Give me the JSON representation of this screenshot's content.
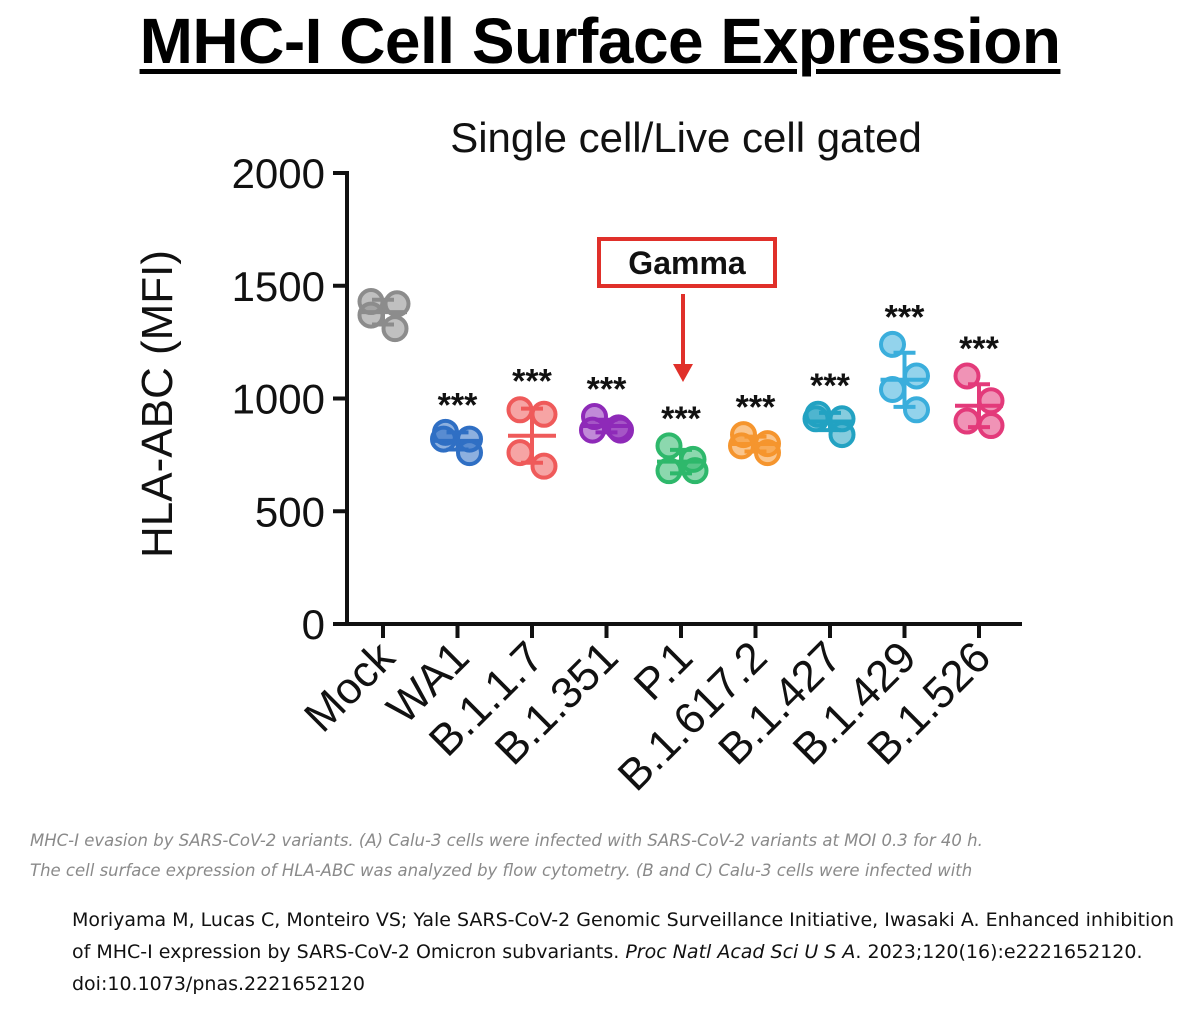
{
  "page": {
    "title": "MHC-I Cell Surface Expression",
    "caption_lines": [
      "MHC-I evasion by SARS-CoV-2 variants. (A) Calu-3 cells were infected with SARS-CoV-2 variants at MOI 0.3 for 40 h.",
      "The cell surface expression of HLA-ABC was analyzed by flow cytometry. (B and C) Calu-3 cells were infected with"
    ],
    "citation": {
      "part1": "Moriyama M, Lucas C, Monteiro VS; Yale SARS-CoV-2 Genomic Surveillance Initiative, Iwasaki A. Enhanced inhibition of MHC-I expression by SARS-CoV-2 Omicron subvariants. ",
      "journal": "Proc Natl Acad Sci U S A",
      "part2": ". 2023;120(16):e2221652120. doi:10.1073/pnas.2221652120"
    }
  },
  "chart_data": {
    "type": "scatter",
    "title": "Single cell/Live cell gated",
    "ylabel": "HLA-ABC (MFI)",
    "xlabel": "",
    "ylim": [
      0,
      2000
    ],
    "yticks": [
      0,
      500,
      1000,
      1500,
      2000
    ],
    "grid": false,
    "categories": [
      "Mock",
      "WA1",
      "B.1.1.7",
      "B.1.351",
      "P.1",
      "B.1.617.2",
      "B.1.427",
      "B.1.429",
      "B.1.526"
    ],
    "series": [
      {
        "category": "Mock",
        "color": "#8c8c8c",
        "points": [
          1430,
          1420,
          1370,
          1310
        ],
        "mean": 1383,
        "sd": 55,
        "significance": ""
      },
      {
        "category": "WA1",
        "color": "#2f6fc4",
        "points": [
          850,
          820,
          820,
          760
        ],
        "mean": 812,
        "sd": 38,
        "significance": "***"
      },
      {
        "category": "B.1.1.7",
        "color": "#ef5a5a",
        "points": [
          950,
          930,
          760,
          700
        ],
        "mean": 835,
        "sd": 120,
        "significance": "***"
      },
      {
        "category": "B.1.351",
        "color": "#8e2ab8",
        "points": [
          920,
          870,
          860,
          860
        ],
        "mean": 878,
        "sd": 28,
        "significance": "***"
      },
      {
        "category": "P.1",
        "color": "#2eb86b",
        "points": [
          790,
          730,
          680,
          680
        ],
        "mean": 720,
        "sd": 52,
        "significance": "***"
      },
      {
        "category": "B.1.617.2",
        "color": "#f5952e",
        "points": [
          840,
          800,
          790,
          760
        ],
        "mean": 798,
        "sd": 33,
        "significance": "***"
      },
      {
        "category": "B.1.427",
        "color": "#22a2c2",
        "points": [
          930,
          910,
          910,
          840
        ],
        "mean": 898,
        "sd": 38,
        "significance": "***"
      },
      {
        "category": "B.1.429",
        "color": "#3aaedc",
        "points": [
          1240,
          1100,
          1040,
          950
        ],
        "mean": 1083,
        "sd": 120,
        "significance": "***"
      },
      {
        "category": "B.1.526",
        "color": "#e33a7a",
        "points": [
          1100,
          990,
          900,
          880
        ],
        "mean": 968,
        "sd": 95,
        "significance": "***"
      }
    ],
    "annotation": {
      "label": "Gamma",
      "target": "P.1",
      "color": "#e0302a"
    }
  }
}
